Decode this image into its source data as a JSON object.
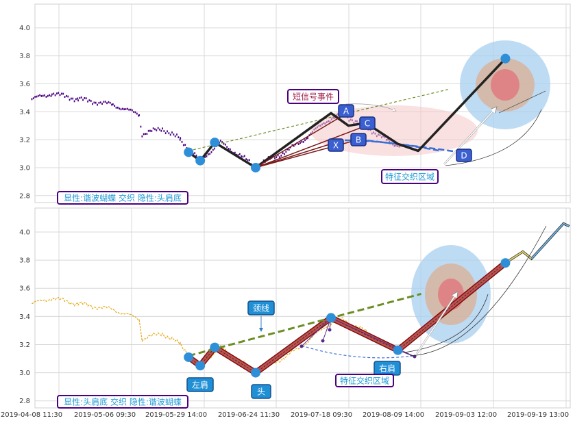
{
  "chart_data": [
    {
      "type": "line",
      "title": "",
      "xlabel": "",
      "ylabel": "",
      "ylim": [
        2.75,
        4.17
      ],
      "yticks": [
        2.8,
        3.0,
        3.2,
        3.4,
        3.6,
        3.8,
        4.0
      ],
      "grid": true,
      "legend_text": "显性:谐波蝴蝶 交织 隐性:头肩底",
      "series": [
        {
          "role": "price",
          "color": "#4b0082",
          "x": [
            "2019-04-08 11:30",
            "2019-04-15 10:00",
            "2019-04-24 10:00",
            "2019-05-06 09:30",
            "2019-05-15 10:00",
            "2019-05-16 10:00",
            "2019-05-23 10:00",
            "2019-05-29 14:00",
            "2019-06-05 10:00",
            "2019-06-12 10:00",
            "2019-06-24 11:30",
            "2019-07-05 10:00",
            "2019-07-12 10:00",
            "2019-07-18 09:30",
            "2019-07-24 10:00",
            "2019-08-02 10:00",
            "2019-08-09 14:00",
            "2019-08-14 10:00"
          ],
          "y": [
            3.49,
            3.53,
            3.49,
            3.45,
            3.38,
            3.24,
            3.28,
            3.2,
            3.05,
            3.18,
            3.01,
            3.12,
            3.22,
            3.33,
            3.38,
            3.28,
            3.18,
            3.15
          ]
        },
        {
          "role": "pattern",
          "color": "#111111",
          "x": [
            "2019-06-01 10:00",
            "2019-06-05 10:00",
            "2019-06-10 10:00",
            "2019-06-24 11:30",
            "2019-07-20 10:00",
            "2019-07-26 10:00",
            "2019-08-01 10:00",
            "2019-08-12 10:00",
            "2019-08-19 10:00",
            "2019-09-18 10:00"
          ],
          "y": [
            3.11,
            3.05,
            3.18,
            3.0,
            3.39,
            3.3,
            3.32,
            3.17,
            3.12,
            3.78
          ]
        }
      ],
      "labels": [
        "短信号事件",
        "A",
        "B",
        "C",
        "X",
        "D",
        "特征交织区域"
      ]
    },
    {
      "type": "line",
      "title": "",
      "xlabel": "",
      "ylabel": "",
      "ylim": [
        2.75,
        4.17
      ],
      "yticks": [
        2.8,
        3.0,
        3.2,
        3.4,
        3.6,
        3.8,
        4.0
      ],
      "grid": true,
      "xticks": [
        "2019-04-08 11:30",
        "2019-05-06 09:30",
        "2019-05-29 14:00",
        "2019-06-24 11:30",
        "2019-07-18 09:30",
        "2019-08-09 14:00",
        "2019-09-03 12:00",
        "2019-09-19 13:00"
      ],
      "legend_text": "显性:头肩底 交织 隐性:谐波蝴蝶",
      "series": [
        {
          "role": "price",
          "color": "#e6a817",
          "x": [
            "2019-04-08 11:30",
            "2019-04-15 10:00",
            "2019-04-24 10:00",
            "2019-05-06 09:30",
            "2019-05-15 10:00",
            "2019-05-16 10:00",
            "2019-05-23 10:00",
            "2019-05-29 14:00",
            "2019-06-05 10:00",
            "2019-06-12 10:00",
            "2019-06-24 11:30",
            "2019-07-05 10:00",
            "2019-07-12 10:00",
            "2019-07-18 09:30",
            "2019-07-24 10:00",
            "2019-08-02 10:00",
            "2019-08-09 14:00",
            "2019-08-14 10:00"
          ],
          "y": [
            3.49,
            3.53,
            3.49,
            3.45,
            3.38,
            3.24,
            3.28,
            3.2,
            3.05,
            3.18,
            3.01,
            3.12,
            3.22,
            3.33,
            3.38,
            3.28,
            3.18,
            3.15
          ]
        },
        {
          "role": "pattern",
          "color": "#8b1a1a",
          "x": [
            "2019-06-01 10:00",
            "2019-06-05 10:00",
            "2019-06-10 10:00",
            "2019-06-24 11:30",
            "2019-07-20 10:00",
            "2019-08-12 10:00",
            "2019-09-18 10:00"
          ],
          "y": [
            3.11,
            3.05,
            3.18,
            3.0,
            3.39,
            3.16,
            3.78
          ]
        },
        {
          "role": "neckline",
          "color": "#6b8e23",
          "x": [
            "2019-06-01 10:00",
            "2019-08-20 10:00"
          ],
          "y": [
            3.12,
            3.56
          ]
        },
        {
          "role": "projection",
          "color": "#3a8fd0",
          "x": [
            "2019-09-18 10:00",
            "2019-09-24 10:00",
            "2019-09-27 10:00",
            "2019-10-08 10:00",
            "2019-10-10 10:00"
          ],
          "y": [
            3.78,
            3.86,
            3.81,
            4.06,
            4.04
          ]
        }
      ],
      "labels": [
        "颈线",
        "左肩",
        "头",
        "右肩",
        "特征交织区域"
      ]
    }
  ]
}
